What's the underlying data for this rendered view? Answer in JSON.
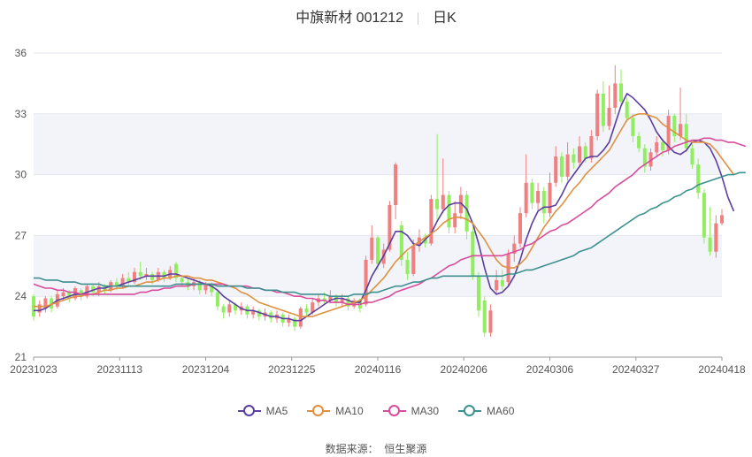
{
  "header": {
    "name": "中旗新材 001212",
    "period": "日K"
  },
  "source": {
    "label": "数据来源：",
    "value": "恒生聚源"
  },
  "colors": {
    "up": "#f08080",
    "down": "#90ee60",
    "ma5": "#5a3ea0",
    "ma10": "#e09040",
    "ma30": "#d84c9c",
    "ma60": "#3c9090",
    "grid": "#e4e7ef",
    "band": "#f3f4f9"
  },
  "chart_data": {
    "type": "candlestick",
    "title": "中旗新材 001212 日K",
    "ylim": [
      21,
      36
    ],
    "y_ticks": [
      21,
      24,
      27,
      30,
      33,
      36
    ],
    "x_ticks": [
      "20231023",
      "20231113",
      "20231204",
      "20231225",
      "20240116",
      "20240206",
      "20240306",
      "20240327",
      "20240418"
    ],
    "grid": true,
    "legend_position": "bottom-center",
    "candles": [
      {
        "o": 24.0,
        "c": 23.0,
        "h": 24.1,
        "l": 22.8
      },
      {
        "o": 23.2,
        "c": 23.6,
        "h": 23.8,
        "l": 23.0
      },
      {
        "o": 23.4,
        "c": 23.9,
        "h": 24.0,
        "l": 23.2
      },
      {
        "o": 23.9,
        "c": 23.4,
        "h": 24.0,
        "l": 23.2
      },
      {
        "o": 23.5,
        "c": 24.1,
        "h": 24.3,
        "l": 23.4
      },
      {
        "o": 24.0,
        "c": 24.2,
        "h": 24.4,
        "l": 23.8
      },
      {
        "o": 24.2,
        "c": 23.9,
        "h": 24.3,
        "l": 23.7
      },
      {
        "o": 23.9,
        "c": 24.4,
        "h": 24.5,
        "l": 23.8
      },
      {
        "o": 24.3,
        "c": 24.0,
        "h": 24.4,
        "l": 23.8
      },
      {
        "o": 24.0,
        "c": 24.5,
        "h": 24.6,
        "l": 23.9
      },
      {
        "o": 24.5,
        "c": 24.2,
        "h": 24.6,
        "l": 24.0
      },
      {
        "o": 24.2,
        "c": 24.5,
        "h": 24.7,
        "l": 24.0
      },
      {
        "o": 24.5,
        "c": 24.3,
        "h": 24.6,
        "l": 24.1
      },
      {
        "o": 24.3,
        "c": 24.7,
        "h": 24.8,
        "l": 24.2
      },
      {
        "o": 24.7,
        "c": 24.5,
        "h": 24.9,
        "l": 24.3
      },
      {
        "o": 24.5,
        "c": 24.9,
        "h": 25.1,
        "l": 24.4
      },
      {
        "o": 24.9,
        "c": 24.7,
        "h": 25.2,
        "l": 24.5
      },
      {
        "o": 24.7,
        "c": 25.2,
        "h": 25.4,
        "l": 24.6
      },
      {
        "o": 25.2,
        "c": 25.0,
        "h": 25.7,
        "l": 24.8
      },
      {
        "o": 25.0,
        "c": 25.1,
        "h": 25.4,
        "l": 24.8
      },
      {
        "o": 25.1,
        "c": 24.8,
        "h": 25.2,
        "l": 24.6
      },
      {
        "o": 24.8,
        "c": 25.2,
        "h": 25.4,
        "l": 24.7
      },
      {
        "o": 25.2,
        "c": 24.9,
        "h": 25.3,
        "l": 24.7
      },
      {
        "o": 24.9,
        "c": 25.3,
        "h": 25.5,
        "l": 24.8
      },
      {
        "o": 25.6,
        "c": 24.9,
        "h": 25.7,
        "l": 24.7
      },
      {
        "o": 24.9,
        "c": 24.7,
        "h": 25.0,
        "l": 24.5
      },
      {
        "o": 24.7,
        "c": 24.5,
        "h": 24.9,
        "l": 24.3
      },
      {
        "o": 24.5,
        "c": 24.7,
        "h": 24.9,
        "l": 24.3
      },
      {
        "o": 24.7,
        "c": 24.3,
        "h": 24.8,
        "l": 24.1
      },
      {
        "o": 24.3,
        "c": 24.6,
        "h": 24.7,
        "l": 24.1
      },
      {
        "o": 24.6,
        "c": 24.2,
        "h": 24.7,
        "l": 24.0
      },
      {
        "o": 24.2,
        "c": 23.5,
        "h": 24.3,
        "l": 23.3
      },
      {
        "o": 23.5,
        "c": 23.2,
        "h": 23.6,
        "l": 22.9
      },
      {
        "o": 23.2,
        "c": 23.6,
        "h": 23.8,
        "l": 23.0
      },
      {
        "o": 23.6,
        "c": 23.3,
        "h": 23.7,
        "l": 23.1
      },
      {
        "o": 23.3,
        "c": 23.5,
        "h": 23.7,
        "l": 23.1
      },
      {
        "o": 23.5,
        "c": 23.1,
        "h": 23.6,
        "l": 22.9
      },
      {
        "o": 23.1,
        "c": 23.3,
        "h": 23.5,
        "l": 22.9
      },
      {
        "o": 23.3,
        "c": 23.0,
        "h": 23.4,
        "l": 22.8
      },
      {
        "o": 23.0,
        "c": 23.2,
        "h": 23.4,
        "l": 22.8
      },
      {
        "o": 23.2,
        "c": 22.9,
        "h": 23.3,
        "l": 22.7
      },
      {
        "o": 22.9,
        "c": 23.1,
        "h": 23.3,
        "l": 22.7
      },
      {
        "o": 23.1,
        "c": 22.7,
        "h": 23.2,
        "l": 22.5
      },
      {
        "o": 22.7,
        "c": 22.9,
        "h": 23.1,
        "l": 22.5
      },
      {
        "o": 22.9,
        "c": 22.5,
        "h": 23.0,
        "l": 22.3
      },
      {
        "o": 22.5,
        "c": 23.4,
        "h": 23.5,
        "l": 22.4
      },
      {
        "o": 23.4,
        "c": 23.2,
        "h": 23.6,
        "l": 23.0
      },
      {
        "o": 23.2,
        "c": 23.7,
        "h": 23.9,
        "l": 23.1
      },
      {
        "o": 23.7,
        "c": 23.9,
        "h": 24.1,
        "l": 23.5
      },
      {
        "o": 23.9,
        "c": 23.8,
        "h": 24.2,
        "l": 23.6
      },
      {
        "o": 23.8,
        "c": 24.0,
        "h": 24.3,
        "l": 23.7
      },
      {
        "o": 24.0,
        "c": 23.7,
        "h": 24.1,
        "l": 23.5
      },
      {
        "o": 23.7,
        "c": 23.9,
        "h": 24.1,
        "l": 23.5
      },
      {
        "o": 23.9,
        "c": 23.5,
        "h": 24.0,
        "l": 23.3
      },
      {
        "o": 23.5,
        "c": 23.8,
        "h": 23.9,
        "l": 23.4
      },
      {
        "o": 23.8,
        "c": 23.4,
        "h": 23.9,
        "l": 23.2
      },
      {
        "o": 23.6,
        "c": 25.8,
        "h": 26.0,
        "l": 23.5
      },
      {
        "o": 25.8,
        "c": 26.9,
        "h": 27.5,
        "l": 25.6
      },
      {
        "o": 26.9,
        "c": 25.6,
        "h": 27.0,
        "l": 25.3
      },
      {
        "o": 25.6,
        "c": 26.3,
        "h": 26.6,
        "l": 25.4
      },
      {
        "o": 26.3,
        "c": 28.5,
        "h": 28.7,
        "l": 26.2
      },
      {
        "o": 28.5,
        "c": 30.5,
        "h": 30.6,
        "l": 27.8
      },
      {
        "o": 27.5,
        "c": 25.8,
        "h": 27.7,
        "l": 25.5
      },
      {
        "o": 25.8,
        "c": 25.1,
        "h": 26.2,
        "l": 24.8
      },
      {
        "o": 25.1,
        "c": 26.5,
        "h": 26.8,
        "l": 25.0
      },
      {
        "o": 26.5,
        "c": 26.9,
        "h": 27.3,
        "l": 26.2
      },
      {
        "o": 26.9,
        "c": 26.6,
        "h": 27.1,
        "l": 26.4
      },
      {
        "o": 26.6,
        "c": 28.8,
        "h": 29.0,
        "l": 26.5
      },
      {
        "o": 28.8,
        "c": 28.3,
        "h": 32.0,
        "l": 27.8
      },
      {
        "o": 28.3,
        "c": 29.0,
        "h": 30.8,
        "l": 28.1
      },
      {
        "o": 29.0,
        "c": 27.4,
        "h": 29.2,
        "l": 27.1
      },
      {
        "o": 27.4,
        "c": 28.1,
        "h": 28.7,
        "l": 27.1
      },
      {
        "o": 28.1,
        "c": 29.0,
        "h": 29.4,
        "l": 27.8
      },
      {
        "o": 29.0,
        "c": 27.2,
        "h": 29.2,
        "l": 26.8
      },
      {
        "o": 27.2,
        "c": 25.0,
        "h": 27.4,
        "l": 24.8
      },
      {
        "o": 25.0,
        "c": 23.3,
        "h": 25.2,
        "l": 23.0
      },
      {
        "o": 23.8,
        "c": 22.2,
        "h": 24.0,
        "l": 22.0
      },
      {
        "o": 22.2,
        "c": 23.3,
        "h": 23.6,
        "l": 22.0
      },
      {
        "o": 24.3,
        "c": 24.8,
        "h": 25.3,
        "l": 24.1
      },
      {
        "o": 24.8,
        "c": 24.5,
        "h": 25.3,
        "l": 24.3
      },
      {
        "o": 24.7,
        "c": 26.1,
        "h": 26.3,
        "l": 24.5
      },
      {
        "o": 26.1,
        "c": 26.6,
        "h": 27.0,
        "l": 25.7
      },
      {
        "o": 26.6,
        "c": 28.1,
        "h": 28.4,
        "l": 26.4
      },
      {
        "o": 28.1,
        "c": 29.6,
        "h": 31.0,
        "l": 27.9
      },
      {
        "o": 29.6,
        "c": 28.6,
        "h": 29.8,
        "l": 28.3
      },
      {
        "o": 28.6,
        "c": 29.2,
        "h": 29.6,
        "l": 28.2
      },
      {
        "o": 29.2,
        "c": 28.1,
        "h": 29.4,
        "l": 27.6
      },
      {
        "o": 28.1,
        "c": 29.6,
        "h": 30.1,
        "l": 27.9
      },
      {
        "o": 29.6,
        "c": 30.9,
        "h": 31.4,
        "l": 29.4
      },
      {
        "o": 30.9,
        "c": 29.9,
        "h": 31.1,
        "l": 29.6
      },
      {
        "o": 29.9,
        "c": 31.0,
        "h": 31.6,
        "l": 29.7
      },
      {
        "o": 31.0,
        "c": 30.6,
        "h": 31.3,
        "l": 30.3
      },
      {
        "o": 30.6,
        "c": 31.4,
        "h": 31.9,
        "l": 30.4
      },
      {
        "o": 31.4,
        "c": 30.8,
        "h": 31.6,
        "l": 30.6
      },
      {
        "o": 30.8,
        "c": 31.9,
        "h": 32.2,
        "l": 30.6
      },
      {
        "o": 31.9,
        "c": 34.0,
        "h": 34.2,
        "l": 31.7
      },
      {
        "o": 34.0,
        "c": 32.4,
        "h": 34.6,
        "l": 32.1
      },
      {
        "o": 32.4,
        "c": 33.3,
        "h": 34.4,
        "l": 32.2
      },
      {
        "o": 33.3,
        "c": 34.5,
        "h": 35.4,
        "l": 33.0
      },
      {
        "o": 34.5,
        "c": 33.6,
        "h": 35.2,
        "l": 33.4
      },
      {
        "o": 33.6,
        "c": 32.8,
        "h": 33.8,
        "l": 32.6
      },
      {
        "o": 32.8,
        "c": 31.9,
        "h": 33.0,
        "l": 31.6
      },
      {
        "o": 31.9,
        "c": 31.3,
        "h": 32.1,
        "l": 31.1
      },
      {
        "o": 31.3,
        "c": 30.4,
        "h": 31.5,
        "l": 30.1
      },
      {
        "o": 30.4,
        "c": 31.1,
        "h": 31.3,
        "l": 30.2
      },
      {
        "o": 31.1,
        "c": 31.6,
        "h": 31.9,
        "l": 30.9
      },
      {
        "o": 31.6,
        "c": 31.2,
        "h": 31.8,
        "l": 30.9
      },
      {
        "o": 31.2,
        "c": 32.9,
        "h": 33.2,
        "l": 31.0
      },
      {
        "o": 32.9,
        "c": 31.9,
        "h": 33.0,
        "l": 31.6
      },
      {
        "o": 31.9,
        "c": 32.5,
        "h": 34.3,
        "l": 31.7
      },
      {
        "o": 32.5,
        "c": 31.3,
        "h": 33.0,
        "l": 31.1
      },
      {
        "o": 31.3,
        "c": 30.5,
        "h": 31.5,
        "l": 30.3
      },
      {
        "o": 30.5,
        "c": 29.1,
        "h": 30.8,
        "l": 28.8
      },
      {
        "o": 29.1,
        "c": 26.9,
        "h": 29.3,
        "l": 26.6
      },
      {
        "o": 26.9,
        "c": 26.2,
        "h": 28.4,
        "l": 26.0
      },
      {
        "o": 26.2,
        "c": 27.6,
        "h": 28.0,
        "l": 25.9
      },
      {
        "o": 27.6,
        "c": 28.0,
        "h": 28.3,
        "l": 27.5
      }
    ],
    "series": [
      {
        "name": "MA5",
        "values": [
          23.3,
          23.3,
          23.4,
          23.6,
          23.8,
          23.9,
          24.0,
          24.1,
          24.1,
          24.2,
          24.3,
          24.4,
          24.4,
          24.5,
          24.5,
          24.6,
          24.7,
          24.8,
          24.9,
          25.0,
          25.0,
          25.0,
          25.0,
          25.1,
          25.1,
          25.0,
          24.9,
          24.8,
          24.7,
          24.6,
          24.5,
          24.3,
          24.0,
          23.8,
          23.6,
          23.4,
          23.3,
          23.3,
          23.2,
          23.1,
          23.0,
          23.0,
          22.9,
          22.9,
          22.8,
          22.8,
          23.0,
          23.2,
          23.4,
          23.6,
          23.8,
          23.9,
          23.9,
          23.8,
          23.7,
          23.7,
          24.3,
          25.0,
          25.5,
          26.0,
          26.6,
          27.2,
          27.2,
          27.0,
          26.6,
          26.5,
          26.8,
          27.1,
          27.7,
          28.2,
          28.5,
          28.6,
          28.6,
          28.3,
          27.6,
          26.6,
          25.4,
          24.4,
          24.1,
          24.2,
          24.5,
          25.0,
          25.8,
          26.8,
          27.6,
          28.2,
          28.4,
          28.4,
          28.5,
          29.0,
          29.6,
          30.0,
          30.4,
          30.8,
          30.9,
          30.9,
          31.2,
          31.6,
          32.5,
          33.4,
          34.0,
          33.8,
          33.5,
          33.2,
          32.7,
          32.1,
          31.7,
          31.4,
          31.1,
          31.0,
          31.2,
          31.6,
          31.7,
          31.6,
          31.3,
          30.7,
          29.9,
          28.9,
          28.2
        ]
      },
      {
        "name": "MA10",
        "values": [
          23.5,
          23.5,
          23.5,
          23.6,
          23.7,
          23.8,
          23.9,
          24.0,
          24.0,
          24.1,
          24.1,
          24.2,
          24.3,
          24.3,
          24.4,
          24.4,
          24.5,
          24.5,
          24.6,
          24.7,
          24.7,
          24.8,
          24.9,
          24.9,
          25.0,
          25.0,
          25.0,
          24.9,
          24.9,
          24.8,
          24.8,
          24.7,
          24.6,
          24.5,
          24.4,
          24.2,
          24.1,
          23.9,
          23.7,
          23.6,
          23.5,
          23.4,
          23.3,
          23.2,
          23.1,
          23.0,
          23.0,
          23.0,
          23.1,
          23.2,
          23.3,
          23.4,
          23.5,
          23.6,
          23.7,
          23.8,
          24.0,
          24.3,
          24.6,
          24.9,
          25.3,
          25.7,
          26.0,
          26.3,
          26.5,
          26.7,
          26.9,
          27.1,
          27.3,
          27.6,
          27.8,
          27.9,
          27.9,
          27.8,
          27.6,
          27.2,
          26.8,
          26.3,
          25.8,
          25.5,
          25.4,
          25.4,
          25.6,
          25.9,
          26.4,
          26.9,
          27.4,
          27.8,
          28.2,
          28.5,
          28.9,
          29.3,
          29.6,
          30.0,
          30.3,
          30.6,
          30.9,
          31.2,
          31.7,
          32.2,
          32.7,
          32.9,
          33.0,
          33.0,
          32.9,
          32.8,
          32.5,
          32.3,
          32.1,
          31.9,
          31.7,
          31.6,
          31.6,
          31.6,
          31.5,
          31.2,
          30.8,
          30.4,
          30.0
        ]
      },
      {
        "name": "MA30",
        "values": [
          24.6,
          24.5,
          24.4,
          24.4,
          24.3,
          24.3,
          24.2,
          24.2,
          24.1,
          24.1,
          24.1,
          24.1,
          24.1,
          24.1,
          24.1,
          24.1,
          24.1,
          24.1,
          24.2,
          24.2,
          24.3,
          24.3,
          24.4,
          24.4,
          24.5,
          24.5,
          24.5,
          24.6,
          24.6,
          24.6,
          24.6,
          24.6,
          24.6,
          24.5,
          24.5,
          24.5,
          24.5,
          24.4,
          24.4,
          24.3,
          24.3,
          24.2,
          24.2,
          24.1,
          24.0,
          24.0,
          23.9,
          23.9,
          23.8,
          23.8,
          23.7,
          23.7,
          23.7,
          23.6,
          23.6,
          23.6,
          23.7,
          23.7,
          23.8,
          23.9,
          24.0,
          24.2,
          24.3,
          24.4,
          24.5,
          24.6,
          24.8,
          24.9,
          25.1,
          25.3,
          25.5,
          25.6,
          25.8,
          25.9,
          26.0,
          26.0,
          26.0,
          26.0,
          26.0,
          26.0,
          26.1,
          26.2,
          26.3,
          26.5,
          26.6,
          26.8,
          27.0,
          27.2,
          27.3,
          27.5,
          27.6,
          27.8,
          28.0,
          28.2,
          28.4,
          28.7,
          28.9,
          29.1,
          29.4,
          29.6,
          29.8,
          30.0,
          30.3,
          30.5,
          30.7,
          30.9,
          31.1,
          31.2,
          31.4,
          31.5,
          31.6,
          31.7,
          31.7,
          31.8,
          31.8,
          31.7,
          31.7,
          31.6,
          31.6,
          31.5,
          31.4
        ]
      },
      {
        "name": "MA60",
        "values": [
          24.9,
          24.9,
          24.8,
          24.8,
          24.8,
          24.7,
          24.7,
          24.7,
          24.6,
          24.6,
          24.6,
          24.6,
          24.5,
          24.5,
          24.5,
          24.5,
          24.5,
          24.5,
          24.5,
          24.5,
          24.5,
          24.5,
          24.5,
          24.5,
          24.6,
          24.6,
          24.6,
          24.6,
          24.6,
          24.6,
          24.6,
          24.5,
          24.5,
          24.5,
          24.5,
          24.5,
          24.4,
          24.4,
          24.4,
          24.3,
          24.3,
          24.3,
          24.2,
          24.2,
          24.2,
          24.1,
          24.1,
          24.1,
          24.1,
          24.1,
          24.0,
          24.0,
          24.0,
          24.0,
          24.1,
          24.1,
          24.1,
          24.2,
          24.2,
          24.3,
          24.4,
          24.5,
          24.5,
          24.6,
          24.7,
          24.7,
          24.8,
          24.9,
          24.9,
          25.0,
          25.0,
          25.0,
          25.0,
          25.0,
          25.0,
          25.0,
          25.0,
          25.0,
          25.0,
          25.0,
          25.1,
          25.1,
          25.2,
          25.3,
          25.3,
          25.4,
          25.5,
          25.6,
          25.7,
          25.8,
          25.9,
          26.0,
          26.2,
          26.3,
          26.4,
          26.6,
          26.8,
          27.0,
          27.2,
          27.4,
          27.6,
          27.8,
          28.0,
          28.1,
          28.3,
          28.4,
          28.6,
          28.7,
          28.9,
          29.0,
          29.2,
          29.3,
          29.5,
          29.6,
          29.7,
          29.8,
          29.9,
          30.0,
          30.0,
          30.1,
          30.1
        ]
      }
    ]
  }
}
